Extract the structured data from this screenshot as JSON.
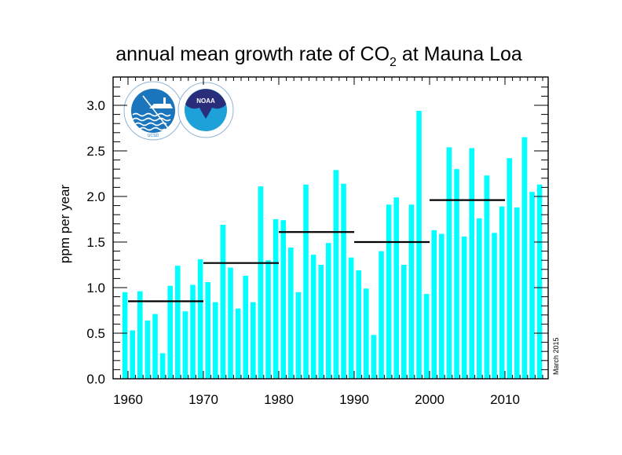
{
  "chart_data": {
    "type": "bar",
    "title": "annual mean growth rate of CO",
    "title_subscript": "2",
    "title_suffix": " at Mauna Loa",
    "xlabel": "",
    "ylabel": "ppm per year",
    "annotation": "March 2015",
    "xlim": [
      1958,
      2015.7
    ],
    "ylim": [
      -0.05,
      3.25
    ],
    "x_ticks": [
      1960,
      1970,
      1980,
      1990,
      2000,
      2010
    ],
    "x_tick_labels": [
      "1960",
      "1970",
      "1980",
      "1990",
      "2000",
      "2010"
    ],
    "y_ticks": [
      0.0,
      0.5,
      1.0,
      1.5,
      2.0,
      2.5,
      3.0
    ],
    "y_tick_labels": [
      "0.0",
      "0.5",
      "1.0",
      "1.5",
      "2.0",
      "2.5",
      "3.0"
    ],
    "grid": false,
    "bar_color": "#00ffff",
    "line_color": "#000000",
    "categories": [
      1959,
      1960,
      1961,
      1962,
      1963,
      1964,
      1965,
      1966,
      1967,
      1968,
      1969,
      1970,
      1971,
      1972,
      1973,
      1974,
      1975,
      1976,
      1977,
      1978,
      1979,
      1980,
      1981,
      1982,
      1983,
      1984,
      1985,
      1986,
      1987,
      1988,
      1989,
      1990,
      1991,
      1992,
      1993,
      1994,
      1995,
      1996,
      1997,
      1998,
      1999,
      2000,
      2001,
      2002,
      2003,
      2004,
      2005,
      2006,
      2007,
      2008,
      2009,
      2010,
      2011,
      2012,
      2013,
      2014
    ],
    "values": [
      0.95,
      0.53,
      0.96,
      0.64,
      0.71,
      0.28,
      1.02,
      1.24,
      0.74,
      1.03,
      1.31,
      1.06,
      0.84,
      1.69,
      1.22,
      0.77,
      1.13,
      0.84,
      2.11,
      1.3,
      1.75,
      1.74,
      1.44,
      0.95,
      2.13,
      1.36,
      1.25,
      1.49,
      2.29,
      2.14,
      1.33,
      1.19,
      0.99,
      0.48,
      1.4,
      1.91,
      1.99,
      1.25,
      1.91,
      2.94,
      0.93,
      1.63,
      1.59,
      2.54,
      2.3,
      1.56,
      2.53,
      1.76,
      2.23,
      1.6,
      1.89,
      2.42,
      1.88,
      2.65,
      2.05,
      2.13
    ],
    "decadal_means": [
      {
        "decade": "1960s",
        "start": 1960,
        "end": 1970,
        "value": 0.85
      },
      {
        "decade": "1970s",
        "start": 1970,
        "end": 1980,
        "value": 1.27
      },
      {
        "decade": "1980s",
        "start": 1980,
        "end": 1990,
        "value": 1.61
      },
      {
        "decade": "1990s",
        "start": 1990,
        "end": 2000,
        "value": 1.5
      },
      {
        "decade": "2000s",
        "start": 2000,
        "end": 2010,
        "value": 1.96
      }
    ],
    "logos": [
      {
        "name": "scripps-logo",
        "text": "UCSD",
        "ring_text": "SCRIPPS INSTITUTION OF OCEANOGRAPHY",
        "color": "#1a75bc"
      },
      {
        "name": "noaa-logo",
        "text": "NOAA",
        "ring_text": "NATIONAL OCEANIC AND ATMOSPHERIC ADMINISTRATION · U.S. DEPARTMENT OF COMMERCE",
        "color": "#2a2e7a",
        "accent": "#1da1d8"
      }
    ]
  }
}
